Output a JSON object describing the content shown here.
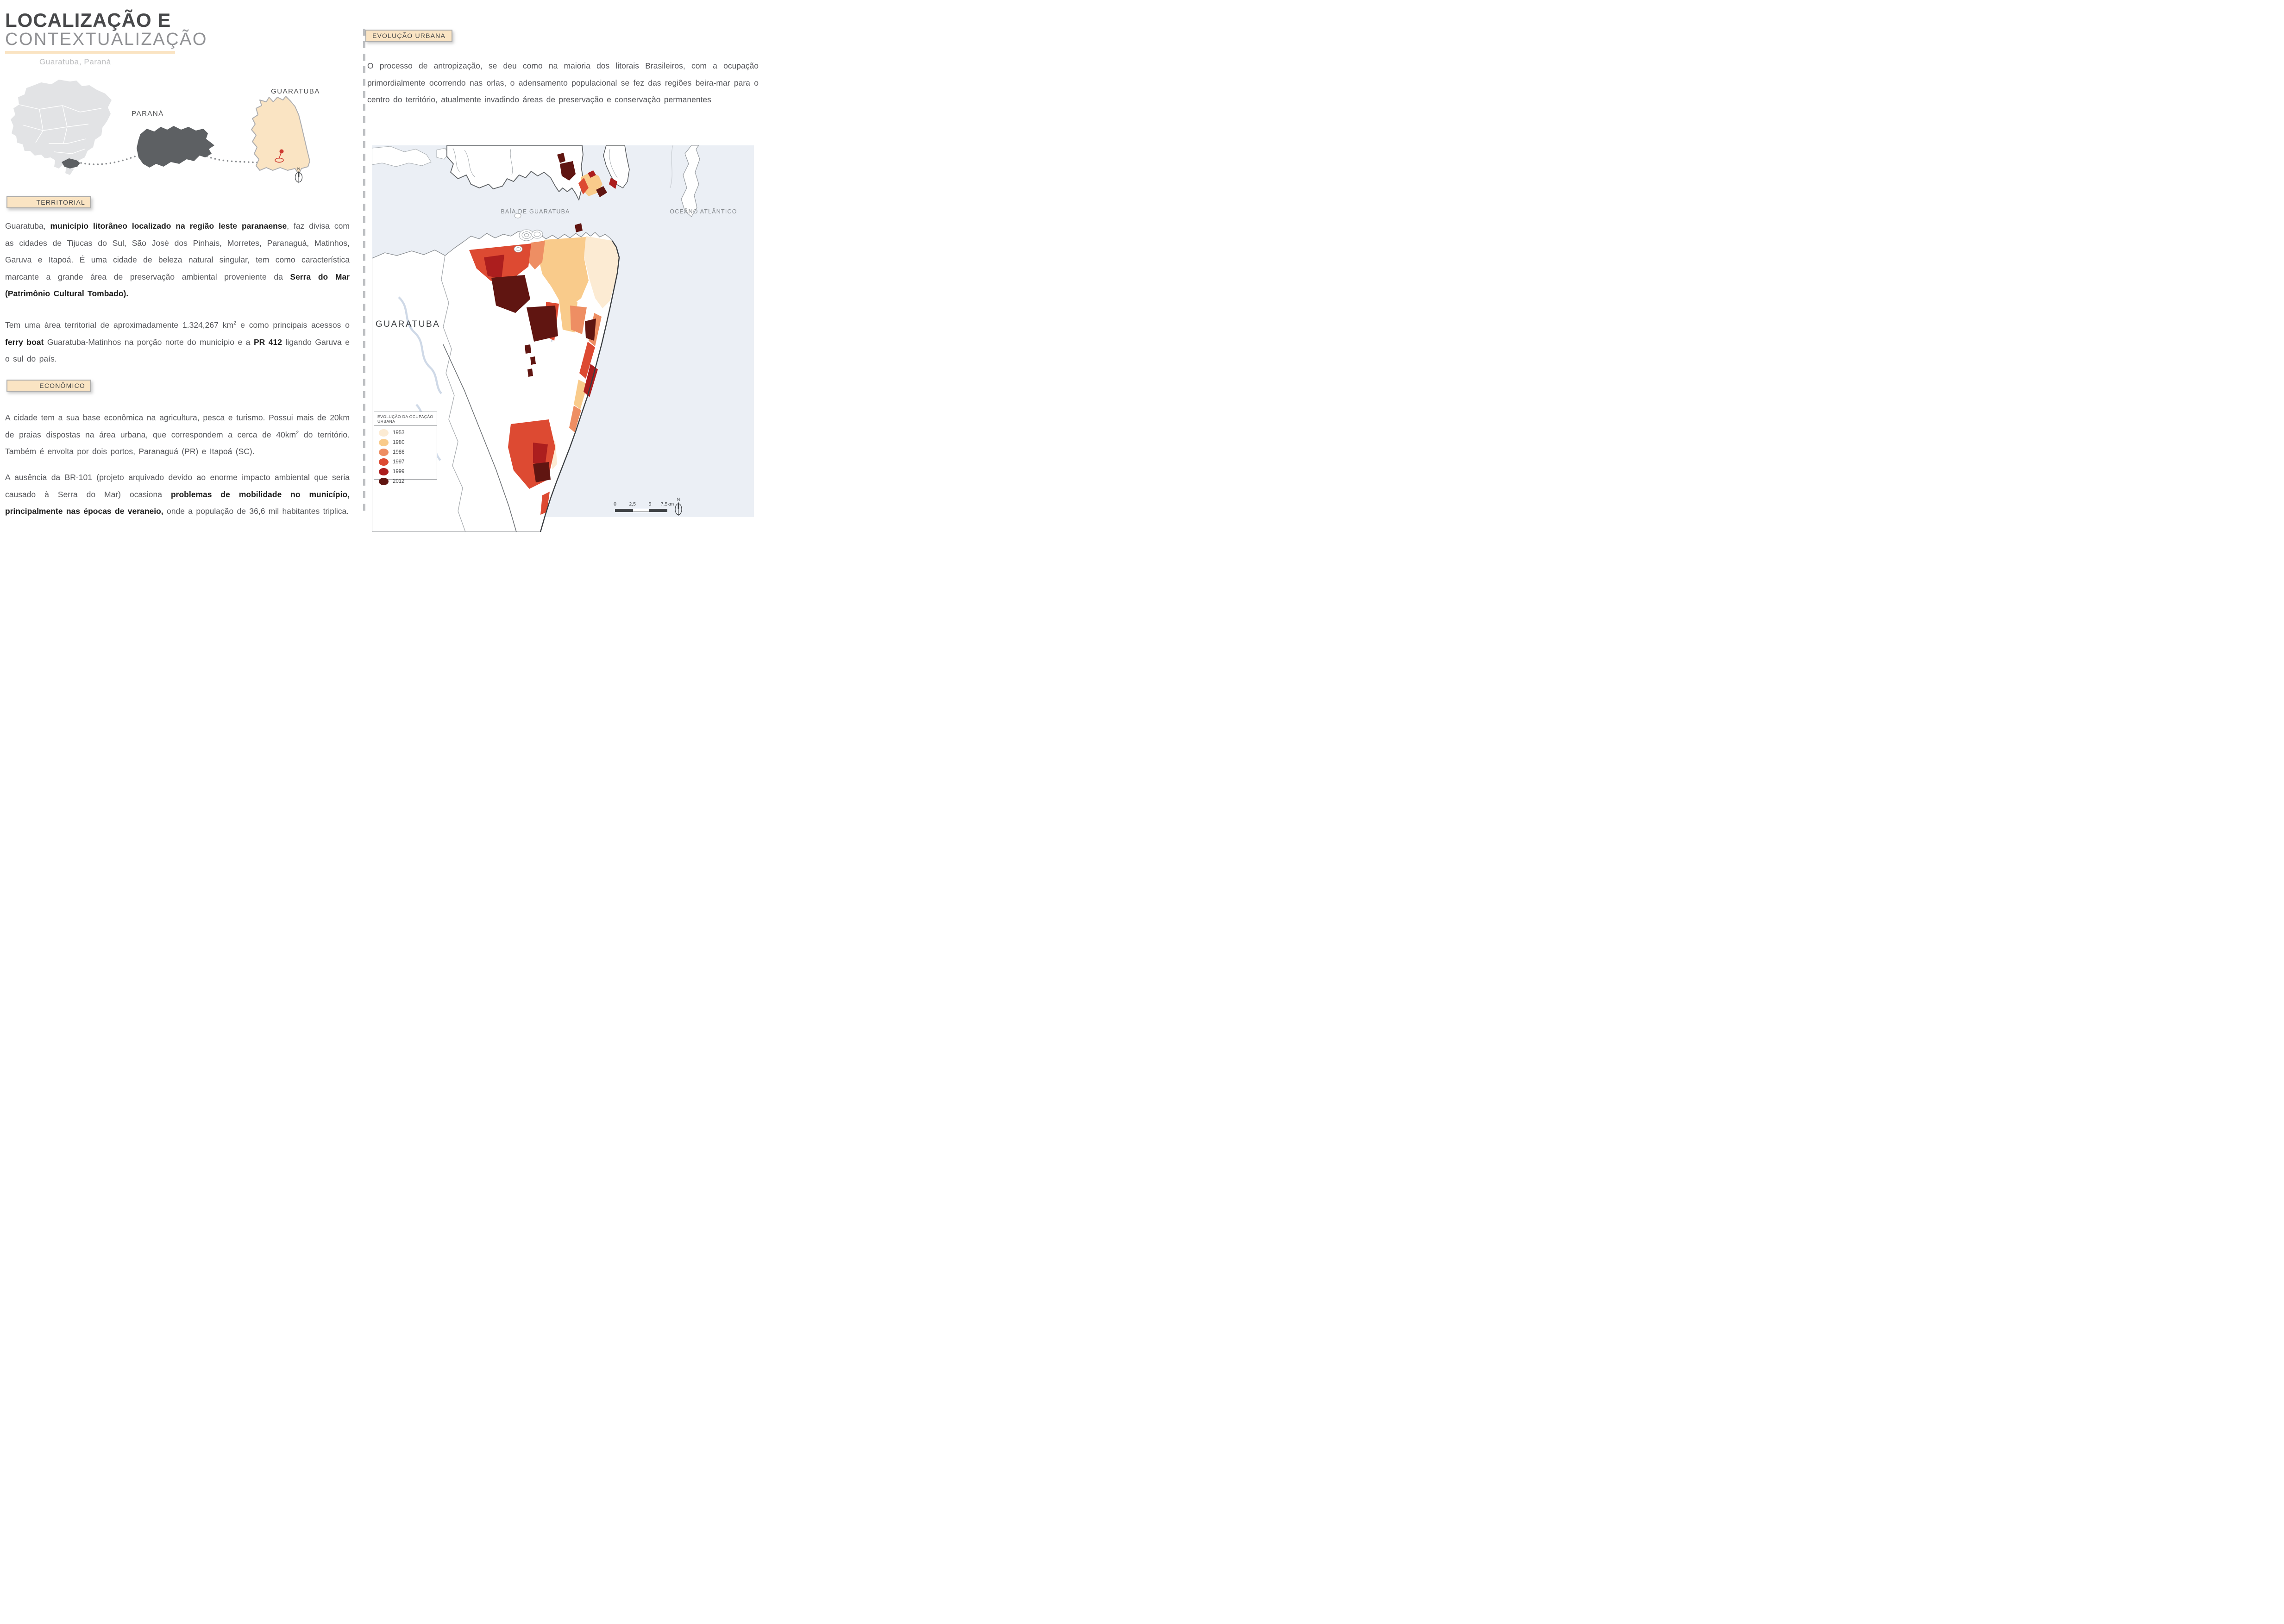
{
  "header": {
    "title_line1": "LOCALIZAÇÃO E",
    "title_line2": "CONTEXTUALIZAÇÃO",
    "subtitle": "Guaratuba, Paraná"
  },
  "locator": {
    "parana_label": "PARANÁ",
    "guaratuba_label": "GUARATUBA",
    "compass_n": "N"
  },
  "territorial": {
    "badge": "TERRITORIAL",
    "p1": [
      {
        "text": "Guaratuba, "
      },
      {
        "text": "município litorâneo localizado na região leste paranaense",
        "bold": true
      },
      {
        "text": ", faz divisa com as cidades de Tijucas do Sul, São José dos Pinhais, Morretes, Paranaguá, Matinhos, Garuva e Itapoá. É uma cidade de beleza natural singular, tem como característica marcante a grande área de preservação ambiental proveniente da "
      },
      {
        "text": "Serra do Mar (Patrimônio Cultural Tombado).",
        "bold": true
      }
    ],
    "p2": [
      {
        "text": "Tem uma área territorial de aproximadamente 1.324,267 km"
      },
      {
        "text": "2",
        "sup": true
      },
      {
        "text": " e como principais acessos o "
      },
      {
        "text": "ferry boat",
        "bold": true
      },
      {
        "text": " Guaratuba-Matinhos na porção norte do município e a "
      },
      {
        "text": "PR 412",
        "bold": true
      },
      {
        "text": " ligando Garuva e o sul do país."
      }
    ]
  },
  "economico": {
    "badge": "ECONÔMICO",
    "p1": [
      {
        "text": "A cidade tem a sua base econômica na agricultura, pesca e turismo. Possui mais de 20km de praias dispostas na área urbana, que correspondem a cerca de 40km"
      },
      {
        "text": "2",
        "sup": true
      },
      {
        "text": " do território. Também é envolta por dois portos, Paranaguá (PR) e Itapoá (SC)."
      }
    ],
    "p2": [
      {
        "text": " A ausência da BR-101 (projeto arquivado devido ao enorme impacto ambiental que seria causado à Serra do Mar) ocasiona "
      },
      {
        "text": "problemas de mobilidade no município, principalmente nas épocas de veraneio,",
        "bold": true
      },
      {
        "text": " onde a população de 36,6 mil habitantes triplica."
      }
    ]
  },
  "evolucao": {
    "badge": "EVOLUÇÃO URBANA",
    "p1": [
      {
        "text": "O processo de antropização, se deu como na maioria dos litorais Brasileiros, com a ocupação primordialmente ocorrendo nas orlas, o adensamento populacional se fez das regiões beira-mar para o centro do território, atualmente invadindo áreas de preservação e conservação permanentes"
      }
    ]
  },
  "map": {
    "bay_label": "BAÍA DE GUARATUBA",
    "ocean_label": "OCEÂNO ATLÂNTICO",
    "city_label": "GUARATUBA",
    "compass_n": "N",
    "legend": {
      "title": "EVOLUÇÃO DA OCUPAÇÃO URBANA",
      "items": [
        {
          "year": "1953",
          "color": "#FCEBD3"
        },
        {
          "year": "1980",
          "color": "#F9CB8B"
        },
        {
          "year": "1986",
          "color": "#EE8E63"
        },
        {
          "year": "1997",
          "color": "#DD4A32"
        },
        {
          "year": "1999",
          "color": "#AC1E1E"
        },
        {
          "year": "2012",
          "color": "#601511"
        }
      ]
    },
    "scalebar": {
      "ticks": [
        "0",
        "2,5",
        "5",
        "7,5km"
      ]
    }
  },
  "colors": {
    "accent": "#FAE4C3",
    "water": "#EBEFF5",
    "state_dark": "#5D6063",
    "brazil_gray": "#E2E3E5"
  }
}
